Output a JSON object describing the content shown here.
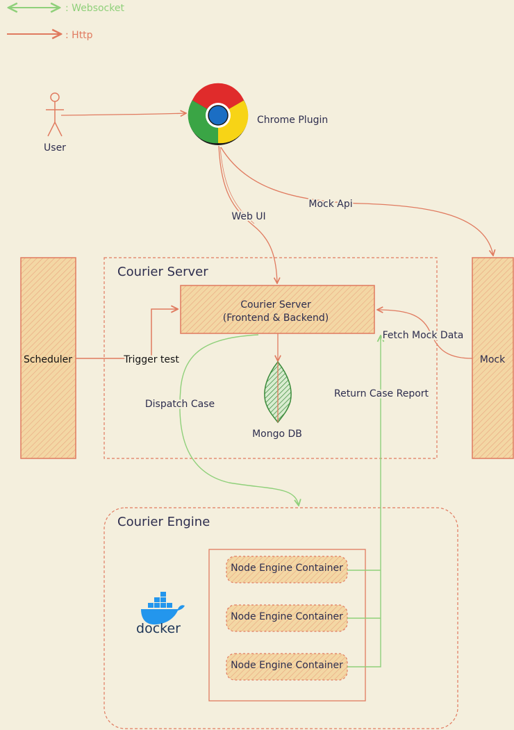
{
  "legend": {
    "websocket": ": Websocket",
    "http": ": Http"
  },
  "nodes": {
    "user": "User",
    "chrome_plugin": "Chrome Plugin",
    "scheduler": "Scheduler",
    "mock": "Mock",
    "courier_server_group": "Courier Server",
    "courier_server_box_line1": "Courier Server",
    "courier_server_box_line2": "(Frontend & Backend)",
    "mongo_db": "Mongo DB",
    "courier_engine_group": "Courier Engine",
    "containers": [
      "Node Engine Container",
      "Node Engine Container",
      "Node Engine Container"
    ],
    "docker": "docker"
  },
  "edges": {
    "web_ui": "Web UI",
    "mock_api": "Mock Api",
    "trigger_test": "Trigger test",
    "fetch_mock_data": "Fetch Mock Data",
    "dispatch_case": "Dispatch Case",
    "return_case_report": "Return Case Report"
  },
  "colors": {
    "background": "#f4efdd",
    "http": "#e07a5f",
    "websocket": "#8fd07a",
    "box_fill": "#f3d7a4",
    "text": "#2d2d4e",
    "chrome_red": "#e02b2b",
    "chrome_yellow": "#f7d416",
    "chrome_green": "#3aa545",
    "chrome_blue": "#1b6ec4",
    "mongo_green": "#3b8b3b",
    "docker_blue": "#2396ed"
  }
}
